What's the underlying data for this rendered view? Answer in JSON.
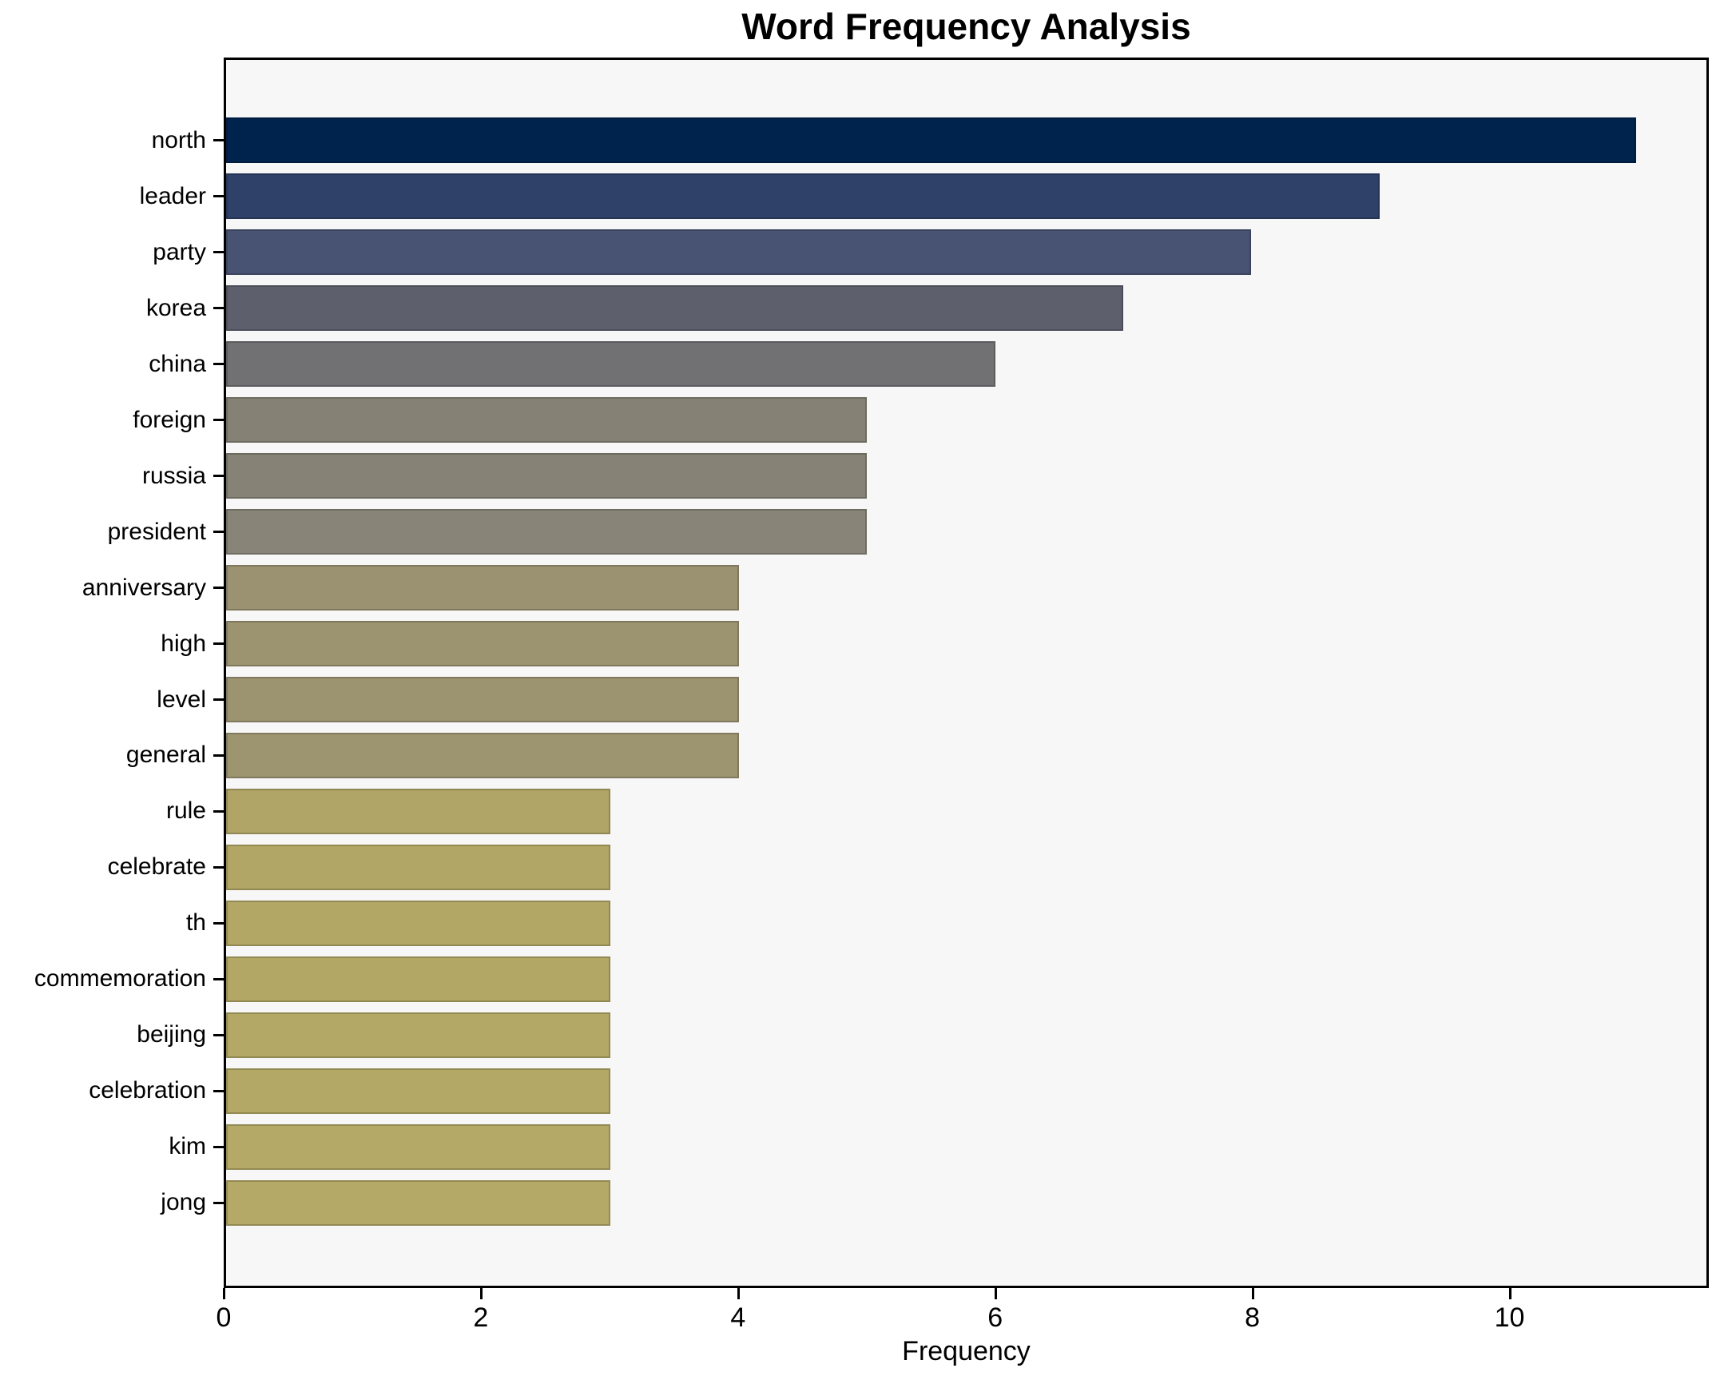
{
  "chart_data": {
    "type": "bar",
    "orientation": "horizontal",
    "title": "Word Frequency Analysis",
    "xlabel": "Frequency",
    "ylabel": "",
    "categories": [
      "north",
      "leader",
      "party",
      "korea",
      "china",
      "foreign",
      "russia",
      "president",
      "anniversary",
      "high",
      "level",
      "general",
      "rule",
      "celebrate",
      "th",
      "commemoration",
      "beijing",
      "celebration",
      "kim",
      "jong"
    ],
    "values": [
      11,
      9,
      8,
      7,
      6,
      5,
      5,
      5,
      4,
      4,
      4,
      4,
      3,
      3,
      3,
      3,
      3,
      3,
      3,
      3
    ],
    "bar_colors": [
      "#00234d",
      "#2f4168",
      "#485272",
      "#5d5f6d",
      "#717174",
      "#858275",
      "#868376",
      "#888578",
      "#9b9272",
      "#9c9371",
      "#9c9371",
      "#9d9470",
      "#b0a566",
      "#b1a665",
      "#b2a765",
      "#b2a765",
      "#b3a866",
      "#b3a866",
      "#b4a967",
      "#b4a967"
    ],
    "xticks": [
      "0",
      "2",
      "4",
      "6",
      "8",
      "10"
    ],
    "xtick_values": [
      0,
      2,
      4,
      6,
      8,
      10
    ],
    "xlim": [
      0,
      11.55
    ],
    "grid": false,
    "legend": "none",
    "plot_background": "#f7f7f8",
    "figure_background": "#ffffff",
    "spine_color": "#000000"
  }
}
